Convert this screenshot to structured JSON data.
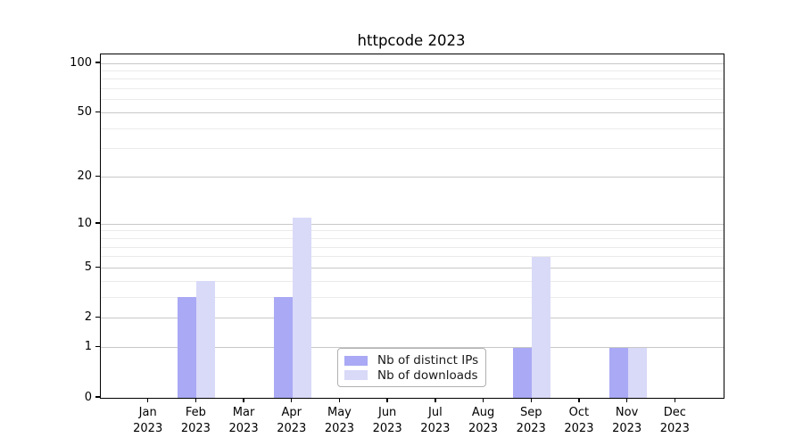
{
  "chart_data": {
    "type": "bar",
    "title": "httpcode 2023",
    "year": "2023",
    "months": [
      "Jan",
      "Feb",
      "Mar",
      "Apr",
      "May",
      "Jun",
      "Jul",
      "Aug",
      "Sep",
      "Oct",
      "Nov",
      "Dec"
    ],
    "series": [
      {
        "name": "Nb of distinct IPs",
        "color": "#a9a9f5",
        "values": [
          0,
          3,
          0,
          3,
          0,
          0,
          0,
          0,
          1,
          0,
          1,
          0
        ]
      },
      {
        "name": "Nb of downloads",
        "color": "#d9d9f8",
        "values": [
          0,
          4,
          0,
          11,
          0,
          0,
          0,
          0,
          6,
          0,
          1,
          0
        ]
      }
    ],
    "y_scale": "log10(value+1)",
    "y_major_ticks": [
      0,
      1,
      2,
      5,
      10,
      20,
      50,
      100
    ],
    "y_minor_ticks": [
      3,
      4,
      6,
      7,
      8,
      9,
      30,
      40,
      60,
      70,
      80,
      90
    ],
    "ylim": [
      0,
      113
    ],
    "grid": true,
    "legend_position": "lower center",
    "colors": {
      "major_grid": "#c8c8c8",
      "minor_grid": "#ebebeb",
      "axis": "#000000",
      "text": "#000000",
      "background": "#ffffff",
      "legend_border": "#b0b0b0"
    }
  }
}
